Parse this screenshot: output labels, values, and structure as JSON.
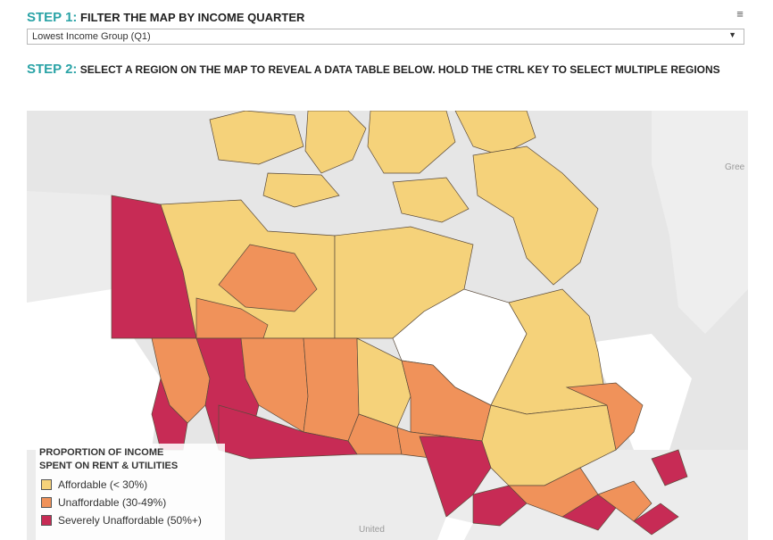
{
  "step1": {
    "label": "STEP 1:",
    "text": "FILTER THE MAP BY INCOME QUARTER"
  },
  "menu_icon": "hamburger-icon",
  "filter": {
    "selected": "Lowest Income Group (Q1)"
  },
  "step2": {
    "label": "STEP 2:",
    "text": "SELECT A REGION ON THE MAP TO REVEAL A DATA TABLE BELOW. HOLD THE CTRL KEY TO SELECT MULTIPLE REGIONS"
  },
  "map": {
    "labels": {
      "greenland": "Gree",
      "united_states": "United"
    }
  },
  "legend": {
    "title_line1": "PROPORTION OF INCOME",
    "title_line2": "SPENT ON RENT & UTILITIES",
    "items": [
      {
        "label": "Affordable (< 30%)",
        "color": "#f5d27a"
      },
      {
        "label": "Unaffordable (30-49%)",
        "color": "#f0925a"
      },
      {
        "label": "Severely Unaffordable (50%+)",
        "color": "#c72b55"
      }
    ]
  },
  "colors": {
    "accent": "#2aa3a6",
    "affordable": "#f5d27a",
    "unaffordable": "#f0925a",
    "severe": "#c72b55",
    "water": "#ffffff",
    "land_outside": "#e9e9e9"
  }
}
